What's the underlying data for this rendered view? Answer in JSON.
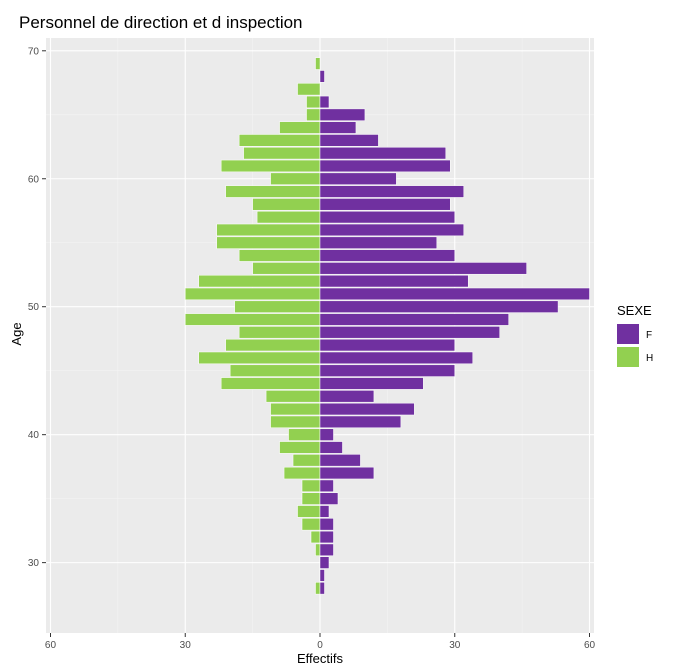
{
  "chart_data": {
    "type": "bar",
    "orientation": "horizontal",
    "subtype": "population-pyramid",
    "title": "Personnel de direction et d inspection",
    "xlabel": "Effectifs",
    "ylabel": "Age",
    "xlim": [
      -61,
      61
    ],
    "ylim": [
      24.5,
      71
    ],
    "xticks": [
      -60,
      -30,
      0,
      30,
      60
    ],
    "xtick_labels": [
      "60",
      "30",
      "0",
      "30",
      "60"
    ],
    "yticks": [
      30,
      40,
      50,
      60,
      70
    ],
    "ytick_labels": [
      "30",
      "40",
      "50",
      "60",
      "70"
    ],
    "grid": true,
    "background": "#ebebeb",
    "legend": {
      "title": "SEXE",
      "position": "right",
      "entries": [
        {
          "label": "F",
          "color": "#7030a0"
        },
        {
          "label": "H",
          "color": "#92d050"
        }
      ]
    },
    "ages": [
      69,
      68,
      67,
      66,
      65,
      64,
      63,
      62,
      61,
      60,
      59,
      58,
      57,
      56,
      55,
      54,
      53,
      52,
      51,
      50,
      49,
      48,
      47,
      46,
      45,
      44,
      43,
      42,
      41,
      40,
      39,
      38,
      37,
      36,
      35,
      34,
      33,
      32,
      31,
      30,
      29,
      28,
      27
    ],
    "series": [
      {
        "name": "F",
        "color": "#7030a0",
        "values": [
          0,
          1,
          0,
          2,
          10,
          8,
          13,
          28,
          29,
          17,
          32,
          29,
          30,
          32,
          26,
          30,
          46,
          33,
          60,
          53,
          42,
          40,
          30,
          34,
          30,
          23,
          12,
          21,
          18,
          3,
          5,
          9,
          12,
          3,
          4,
          2,
          3,
          3,
          3,
          2,
          1,
          1,
          0
        ]
      },
      {
        "name": "H",
        "color": "#92d050",
        "values": [
          1,
          0,
          5,
          3,
          3,
          9,
          18,
          17,
          22,
          11,
          21,
          15,
          14,
          23,
          23,
          18,
          15,
          27,
          30,
          19,
          30,
          18,
          21,
          27,
          20,
          22,
          12,
          11,
          11,
          7,
          9,
          6,
          8,
          4,
          4,
          5,
          4,
          2,
          1,
          0,
          0,
          1,
          0
        ]
      }
    ]
  }
}
